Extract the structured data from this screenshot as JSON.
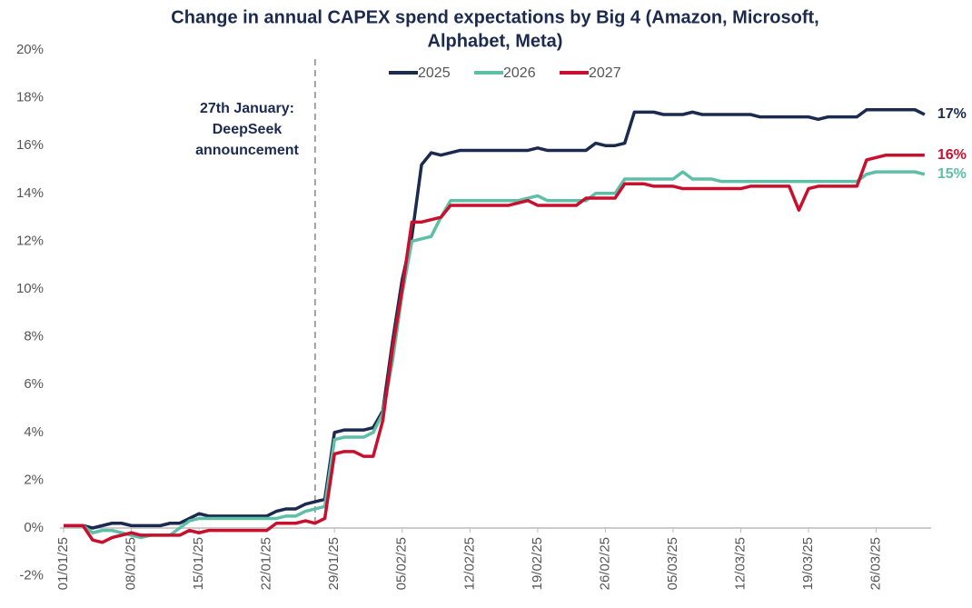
{
  "chart_data": {
    "type": "line",
    "title": [
      "Change in annual CAPEX spend expectations by Big 4 (Amazon, Microsoft,",
      "Alphabet, Meta)"
    ],
    "categories": [
      "01/01/25",
      null,
      null,
      null,
      null,
      null,
      null,
      "08/01/25",
      null,
      null,
      null,
      null,
      null,
      null,
      "15/01/25",
      null,
      null,
      null,
      null,
      null,
      null,
      "22/01/25",
      null,
      null,
      null,
      null,
      null,
      null,
      "29/01/25",
      null,
      null,
      null,
      null,
      null,
      null,
      "05/02/25",
      null,
      null,
      null,
      null,
      null,
      null,
      "12/02/25",
      null,
      null,
      null,
      null,
      null,
      null,
      "19/02/25",
      null,
      null,
      null,
      null,
      null,
      null,
      "26/02/25",
      null,
      null,
      null,
      null,
      null,
      null,
      "05/03/25",
      null,
      null,
      null,
      null,
      null,
      null,
      "12/03/25",
      null,
      null,
      null,
      null,
      null,
      null,
      "19/03/25",
      null,
      null,
      null,
      null,
      null,
      null,
      "26/03/25",
      null,
      null,
      null,
      null,
      null
    ],
    "series": [
      {
        "name": "2025",
        "color": "#1b2a4e",
        "end_label": "17%",
        "values": [
          0.1,
          0.1,
          0.1,
          0.0,
          0.1,
          0.2,
          0.2,
          0.1,
          0.1,
          0.1,
          0.1,
          0.2,
          0.2,
          0.4,
          0.6,
          0.5,
          0.5,
          0.5,
          0.5,
          0.5,
          0.5,
          0.5,
          0.7,
          0.8,
          0.8,
          1.0,
          1.1,
          1.2,
          4.0,
          4.1,
          4.1,
          4.1,
          4.2,
          4.9,
          7.8,
          10.4,
          12.2,
          15.2,
          15.7,
          15.6,
          15.7,
          15.8,
          15.8,
          15.8,
          15.8,
          15.8,
          15.8,
          15.8,
          15.8,
          15.9,
          15.8,
          15.8,
          15.8,
          15.8,
          15.8,
          16.1,
          16.0,
          16.0,
          16.1,
          17.4,
          17.4,
          17.4,
          17.3,
          17.3,
          17.3,
          17.4,
          17.3,
          17.3,
          17.3,
          17.3,
          17.3,
          17.3,
          17.2,
          17.2,
          17.2,
          17.2,
          17.2,
          17.2,
          17.1,
          17.2,
          17.2,
          17.2,
          17.2,
          17.5,
          17.5,
          17.5,
          17.5,
          17.5,
          17.5,
          17.3
        ]
      },
      {
        "name": "2026",
        "color": "#5dbfa6",
        "end_label": "15%",
        "values": [
          0.1,
          0.1,
          0.1,
          -0.2,
          -0.1,
          -0.1,
          -0.2,
          -0.3,
          -0.4,
          -0.3,
          -0.3,
          -0.3,
          0.0,
          0.3,
          0.4,
          0.4,
          0.4,
          0.4,
          0.4,
          0.4,
          0.4,
          0.4,
          0.4,
          0.5,
          0.5,
          0.7,
          0.8,
          0.9,
          3.7,
          3.8,
          3.8,
          3.8,
          4.0,
          4.8,
          7.0,
          9.8,
          12.0,
          12.1,
          12.2,
          13.0,
          13.7,
          13.7,
          13.7,
          13.7,
          13.7,
          13.7,
          13.7,
          13.7,
          13.8,
          13.9,
          13.7,
          13.7,
          13.7,
          13.7,
          13.7,
          14.0,
          14.0,
          14.0,
          14.6,
          14.6,
          14.6,
          14.6,
          14.6,
          14.6,
          14.9,
          14.6,
          14.6,
          14.6,
          14.5,
          14.5,
          14.5,
          14.5,
          14.5,
          14.5,
          14.5,
          14.5,
          14.5,
          14.5,
          14.5,
          14.5,
          14.5,
          14.5,
          14.5,
          14.8,
          14.9,
          14.9,
          14.9,
          14.9,
          14.9,
          14.8
        ]
      },
      {
        "name": "2027",
        "color": "#c8102e",
        "end_label": "16%",
        "values": [
          0.1,
          0.1,
          0.1,
          -0.5,
          -0.6,
          -0.4,
          -0.3,
          -0.2,
          -0.3,
          -0.3,
          -0.3,
          -0.3,
          -0.3,
          -0.1,
          -0.2,
          -0.1,
          -0.1,
          -0.1,
          -0.1,
          -0.1,
          -0.1,
          -0.1,
          0.2,
          0.2,
          0.2,
          0.3,
          0.2,
          0.4,
          3.1,
          3.2,
          3.2,
          3.0,
          3.0,
          4.5,
          7.5,
          10.0,
          12.8,
          12.8,
          12.9,
          13.0,
          13.5,
          13.5,
          13.5,
          13.5,
          13.5,
          13.5,
          13.5,
          13.6,
          13.7,
          13.5,
          13.5,
          13.5,
          13.5,
          13.5,
          13.8,
          13.8,
          13.8,
          13.8,
          14.4,
          14.4,
          14.4,
          14.3,
          14.3,
          14.3,
          14.2,
          14.2,
          14.2,
          14.2,
          14.2,
          14.2,
          14.2,
          14.3,
          14.3,
          14.3,
          14.3,
          14.3,
          13.3,
          14.2,
          14.3,
          14.3,
          14.3,
          14.3,
          14.3,
          15.4,
          15.5,
          15.6,
          15.6,
          15.6,
          15.6,
          15.6
        ]
      }
    ],
    "annotation": {
      "lines": [
        "27th January:",
        "DeepSeek",
        "announcement"
      ],
      "at": 26
    },
    "ylim": [
      -2,
      20
    ],
    "yticks": [
      {
        "value": -2,
        "label": "-2%"
      },
      {
        "value": 0,
        "label": "0%"
      },
      {
        "value": 2,
        "label": "2%"
      },
      {
        "value": 4,
        "label": "4%"
      },
      {
        "value": 6,
        "label": "6%"
      },
      {
        "value": 8,
        "label": "8%"
      },
      {
        "value": 10,
        "label": "10%"
      },
      {
        "value": 12,
        "label": "12%"
      },
      {
        "value": 14,
        "label": "14%"
      },
      {
        "value": 16,
        "label": "16%"
      },
      {
        "value": 18,
        "label": "18%"
      },
      {
        "value": 20,
        "label": "20%"
      }
    ],
    "grid": false
  }
}
